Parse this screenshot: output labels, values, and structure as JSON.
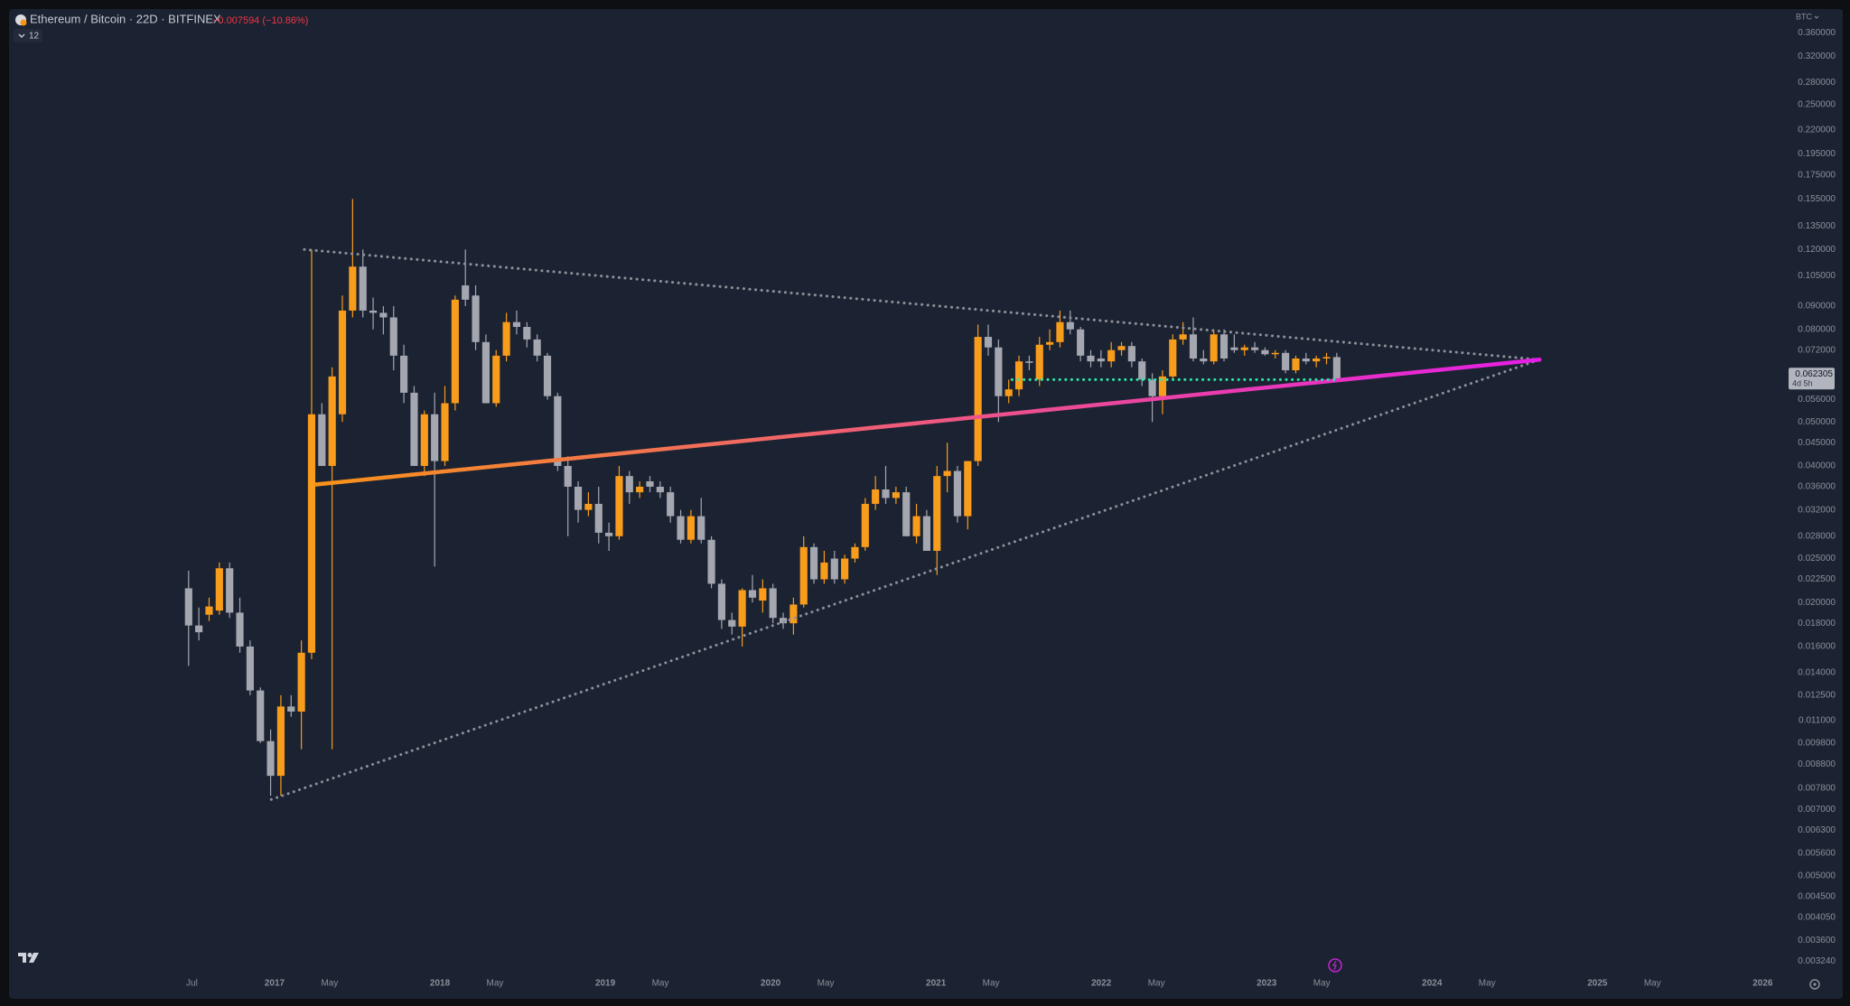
{
  "chart_data": {
    "type": "candlestick",
    "title": "Ethereum / Bitcoin · 22D · BITFINEX",
    "subtitle": "−0.007594 (−10.86%)",
    "indicator_count": "12",
    "currency": "BTC",
    "last_price": 0.062305,
    "countdown": "4d 5h",
    "log_scale": true,
    "grid": false,
    "up_color": "#f89c1c",
    "down_color": "#a4a7b0",
    "xlim": [
      2015.394,
      2026.129
    ],
    "ylim": [
      0.00303,
      0.401
    ],
    "xticks": [
      {
        "value": 2016.5,
        "label": "Jul"
      },
      2017,
      {
        "value": 2017.333,
        "label": "May"
      },
      2018,
      {
        "value": 2018.333,
        "label": "May"
      },
      2019,
      {
        "value": 2019.333,
        "label": "May"
      },
      2020,
      {
        "value": 2020.333,
        "label": "May"
      },
      2021,
      {
        "value": 2021.333,
        "label": "May"
      },
      2022,
      {
        "value": 2022.333,
        "label": "May"
      },
      2023,
      {
        "value": 2023.333,
        "label": "May"
      },
      2024,
      {
        "value": 2024.333,
        "label": "May"
      },
      2025,
      {
        "value": 2025.333,
        "label": "May"
      },
      2026
    ],
    "yticks": [
      {
        "value": 0.36,
        "label": "0.360000"
      },
      {
        "value": 0.32,
        "label": "0.320000"
      },
      {
        "value": 0.28,
        "label": "0.280000"
      },
      {
        "value": 0.25,
        "label": "0.250000"
      },
      {
        "value": 0.22,
        "label": "0.220000"
      },
      {
        "value": 0.195,
        "label": "0.195000"
      },
      {
        "value": 0.175,
        "label": "0.175000"
      },
      {
        "value": 0.155,
        "label": "0.155000"
      },
      {
        "value": 0.135,
        "label": "0.135000"
      },
      {
        "value": 0.12,
        "label": "0.120000"
      },
      {
        "value": 0.105,
        "label": "0.105000"
      },
      {
        "value": 0.09,
        "label": "0.090000"
      },
      {
        "value": 0.08,
        "label": "0.080000"
      },
      {
        "value": 0.072,
        "label": "0.072000"
      },
      {
        "value": 0.056,
        "label": "0.056000"
      },
      {
        "value": 0.05,
        "label": "0.050000"
      },
      {
        "value": 0.045,
        "label": "0.045000"
      },
      {
        "value": 0.04,
        "label": "0.040000"
      },
      {
        "value": 0.036,
        "label": "0.036000"
      },
      {
        "value": 0.032,
        "label": "0.032000"
      },
      {
        "value": 0.028,
        "label": "0.028000"
      },
      {
        "value": 0.025,
        "label": "0.025000"
      },
      {
        "value": 0.0225,
        "label": "0.022500"
      },
      {
        "value": 0.02,
        "label": "0.020000"
      },
      {
        "value": 0.018,
        "label": "0.018000"
      },
      {
        "value": 0.016,
        "label": "0.016000"
      },
      {
        "value": 0.014,
        "label": "0.014000"
      },
      {
        "value": 0.0125,
        "label": "0.012500"
      },
      {
        "value": 0.011,
        "label": "0.011000"
      },
      {
        "value": 0.0098,
        "label": "0.009800"
      },
      {
        "value": 0.0088,
        "label": "0.008800"
      },
      {
        "value": 0.0078,
        "label": "0.007800"
      },
      {
        "value": 0.007,
        "label": "0.007000"
      },
      {
        "value": 0.0063,
        "label": "0.006300"
      },
      {
        "value": 0.0056,
        "label": "0.005600"
      },
      {
        "value": 0.005,
        "label": "0.005000"
      },
      {
        "value": 0.0045,
        "label": "0.004500"
      },
      {
        "value": 0.00405,
        "label": "0.004050"
      },
      {
        "value": 0.0036,
        "label": "0.003600"
      },
      {
        "value": 0.00324,
        "label": "0.003240"
      }
    ],
    "candles": [
      {
        "x": 2016.48,
        "open": 0.0215,
        "high": 0.0235,
        "low": 0.0145,
        "close": 0.0178
      },
      {
        "x": 2016.542,
        "open": 0.0178,
        "high": 0.0195,
        "low": 0.0165,
        "close": 0.0172
      },
      {
        "x": 2016.604,
        "open": 0.0188,
        "high": 0.0205,
        "low": 0.0182,
        "close": 0.0196
      },
      {
        "x": 2016.666,
        "open": 0.0192,
        "high": 0.0245,
        "low": 0.0188,
        "close": 0.0238
      },
      {
        "x": 2016.728,
        "open": 0.0238,
        "high": 0.0245,
        "low": 0.0185,
        "close": 0.019
      },
      {
        "x": 2016.79,
        "open": 0.019,
        "high": 0.0205,
        "low": 0.0155,
        "close": 0.016
      },
      {
        "x": 2016.852,
        "open": 0.016,
        "high": 0.0165,
        "low": 0.0125,
        "close": 0.0128
      },
      {
        "x": 2016.914,
        "open": 0.0128,
        "high": 0.013,
        "low": 0.0098,
        "close": 0.0099
      },
      {
        "x": 2016.976,
        "open": 0.0099,
        "high": 0.0105,
        "low": 0.0075,
        "close": 0.0083
      },
      {
        "x": 2017.038,
        "open": 0.0083,
        "high": 0.0125,
        "low": 0.0075,
        "close": 0.0118
      },
      {
        "x": 2017.1,
        "open": 0.0118,
        "high": 0.0125,
        "low": 0.0112,
        "close": 0.0115
      },
      {
        "x": 2017.162,
        "open": 0.0115,
        "high": 0.0165,
        "low": 0.0095,
        "close": 0.0155
      },
      {
        "x": 2017.224,
        "open": 0.0155,
        "high": 0.12,
        "low": 0.015,
        "close": 0.052
      },
      {
        "x": 2017.286,
        "open": 0.052,
        "high": 0.055,
        "low": 0.04,
        "close": 0.04
      },
      {
        "x": 2017.348,
        "open": 0.04,
        "high": 0.066,
        "low": 0.0095,
        "close": 0.063
      },
      {
        "x": 2017.41,
        "open": 0.052,
        "high": 0.095,
        "low": 0.05,
        "close": 0.088
      },
      {
        "x": 2017.472,
        "open": 0.088,
        "high": 0.155,
        "low": 0.085,
        "close": 0.11
      },
      {
        "x": 2017.534,
        "open": 0.11,
        "high": 0.12,
        "low": 0.085,
        "close": 0.088
      },
      {
        "x": 2017.596,
        "open": 0.088,
        "high": 0.094,
        "low": 0.08,
        "close": 0.087
      },
      {
        "x": 2017.658,
        "open": 0.087,
        "high": 0.09,
        "low": 0.078,
        "close": 0.085
      },
      {
        "x": 2017.72,
        "open": 0.085,
        "high": 0.09,
        "low": 0.065,
        "close": 0.07
      },
      {
        "x": 2017.782,
        "open": 0.07,
        "high": 0.074,
        "low": 0.055,
        "close": 0.058
      },
      {
        "x": 2017.844,
        "open": 0.058,
        "high": 0.06,
        "low": 0.04,
        "close": 0.04
      },
      {
        "x": 2017.906,
        "open": 0.04,
        "high": 0.053,
        "low": 0.038,
        "close": 0.052
      },
      {
        "x": 2017.968,
        "open": 0.052,
        "high": 0.058,
        "low": 0.024,
        "close": 0.041
      },
      {
        "x": 2018.03,
        "open": 0.041,
        "high": 0.06,
        "low": 0.04,
        "close": 0.055
      },
      {
        "x": 2018.092,
        "open": 0.055,
        "high": 0.095,
        "low": 0.053,
        "close": 0.093
      },
      {
        "x": 2018.154,
        "open": 0.1,
        "high": 0.12,
        "low": 0.09,
        "close": 0.093
      },
      {
        "x": 2018.216,
        "open": 0.095,
        "high": 0.1,
        "low": 0.072,
        "close": 0.075
      },
      {
        "x": 2018.278,
        "open": 0.075,
        "high": 0.078,
        "low": 0.055,
        "close": 0.055
      },
      {
        "x": 2018.34,
        "open": 0.055,
        "high": 0.072,
        "low": 0.054,
        "close": 0.07
      },
      {
        "x": 2018.402,
        "open": 0.07,
        "high": 0.087,
        "low": 0.068,
        "close": 0.083
      },
      {
        "x": 2018.464,
        "open": 0.083,
        "high": 0.088,
        "low": 0.078,
        "close": 0.081
      },
      {
        "x": 2018.526,
        "open": 0.081,
        "high": 0.083,
        "low": 0.073,
        "close": 0.076
      },
      {
        "x": 2018.588,
        "open": 0.076,
        "high": 0.078,
        "low": 0.068,
        "close": 0.07
      },
      {
        "x": 2018.65,
        "open": 0.07,
        "high": 0.071,
        "low": 0.056,
        "close": 0.057
      },
      {
        "x": 2018.712,
        "open": 0.057,
        "high": 0.058,
        "low": 0.039,
        "close": 0.04
      },
      {
        "x": 2018.774,
        "open": 0.04,
        "high": 0.042,
        "low": 0.028,
        "close": 0.036
      },
      {
        "x": 2018.836,
        "open": 0.036,
        "high": 0.037,
        "low": 0.03,
        "close": 0.032
      },
      {
        "x": 2018.898,
        "open": 0.032,
        "high": 0.035,
        "low": 0.031,
        "close": 0.033
      },
      {
        "x": 2018.96,
        "open": 0.033,
        "high": 0.036,
        "low": 0.027,
        "close": 0.0285
      },
      {
        "x": 2019.022,
        "open": 0.0285,
        "high": 0.03,
        "low": 0.026,
        "close": 0.028
      },
      {
        "x": 2019.084,
        "open": 0.028,
        "high": 0.04,
        "low": 0.0275,
        "close": 0.038
      },
      {
        "x": 2019.146,
        "open": 0.038,
        "high": 0.039,
        "low": 0.033,
        "close": 0.035
      },
      {
        "x": 2019.208,
        "open": 0.035,
        "high": 0.037,
        "low": 0.034,
        "close": 0.036
      },
      {
        "x": 2019.27,
        "open": 0.037,
        "high": 0.038,
        "low": 0.035,
        "close": 0.036
      },
      {
        "x": 2019.332,
        "open": 0.036,
        "high": 0.037,
        "low": 0.034,
        "close": 0.035
      },
      {
        "x": 2019.394,
        "open": 0.035,
        "high": 0.036,
        "low": 0.03,
        "close": 0.031
      },
      {
        "x": 2019.456,
        "open": 0.031,
        "high": 0.032,
        "low": 0.027,
        "close": 0.0275
      },
      {
        "x": 2019.518,
        "open": 0.0275,
        "high": 0.032,
        "low": 0.027,
        "close": 0.031
      },
      {
        "x": 2019.58,
        "open": 0.031,
        "high": 0.034,
        "low": 0.027,
        "close": 0.0275
      },
      {
        "x": 2019.642,
        "open": 0.0275,
        "high": 0.028,
        "low": 0.0215,
        "close": 0.022
      },
      {
        "x": 2019.704,
        "open": 0.022,
        "high": 0.0225,
        "low": 0.0175,
        "close": 0.0183
      },
      {
        "x": 2019.766,
        "open": 0.0183,
        "high": 0.019,
        "low": 0.017,
        "close": 0.0177
      },
      {
        "x": 2019.828,
        "open": 0.0177,
        "high": 0.0215,
        "low": 0.016,
        "close": 0.0213
      },
      {
        "x": 2019.89,
        "open": 0.0213,
        "high": 0.023,
        "low": 0.02,
        "close": 0.0205
      },
      {
        "x": 2019.952,
        "open": 0.0202,
        "high": 0.0225,
        "low": 0.019,
        "close": 0.0215
      },
      {
        "x": 2020.014,
        "open": 0.0215,
        "high": 0.022,
        "low": 0.018,
        "close": 0.0185
      },
      {
        "x": 2020.076,
        "open": 0.0185,
        "high": 0.019,
        "low": 0.0175,
        "close": 0.018
      },
      {
        "x": 2020.138,
        "open": 0.018,
        "high": 0.0205,
        "low": 0.017,
        "close": 0.0198
      },
      {
        "x": 2020.2,
        "open": 0.0198,
        "high": 0.028,
        "low": 0.0195,
        "close": 0.0265
      },
      {
        "x": 2020.262,
        "open": 0.0265,
        "high": 0.027,
        "low": 0.022,
        "close": 0.0225
      },
      {
        "x": 2020.324,
        "open": 0.0225,
        "high": 0.026,
        "low": 0.022,
        "close": 0.0245
      },
      {
        "x": 2020.386,
        "open": 0.025,
        "high": 0.026,
        "low": 0.022,
        "close": 0.0225
      },
      {
        "x": 2020.448,
        "open": 0.0225,
        "high": 0.0255,
        "low": 0.022,
        "close": 0.025
      },
      {
        "x": 2020.51,
        "open": 0.025,
        "high": 0.027,
        "low": 0.0245,
        "close": 0.0265
      },
      {
        "x": 2020.572,
        "open": 0.0265,
        "high": 0.034,
        "low": 0.026,
        "close": 0.033
      },
      {
        "x": 2020.634,
        "open": 0.033,
        "high": 0.038,
        "low": 0.032,
        "close": 0.0355
      },
      {
        "x": 2020.696,
        "open": 0.0355,
        "high": 0.04,
        "low": 0.033,
        "close": 0.034
      },
      {
        "x": 2020.758,
        "open": 0.034,
        "high": 0.036,
        "low": 0.033,
        "close": 0.035
      },
      {
        "x": 2020.82,
        "open": 0.035,
        "high": 0.036,
        "low": 0.028,
        "close": 0.028
      },
      {
        "x": 2020.882,
        "open": 0.028,
        "high": 0.033,
        "low": 0.027,
        "close": 0.031
      },
      {
        "x": 2020.944,
        "open": 0.031,
        "high": 0.032,
        "low": 0.026,
        "close": 0.026
      },
      {
        "x": 2021.006,
        "open": 0.026,
        "high": 0.04,
        "low": 0.023,
        "close": 0.038
      },
      {
        "x": 2021.068,
        "open": 0.038,
        "high": 0.045,
        "low": 0.035,
        "close": 0.039
      },
      {
        "x": 2021.13,
        "open": 0.039,
        "high": 0.04,
        "low": 0.03,
        "close": 0.031
      },
      {
        "x": 2021.192,
        "open": 0.031,
        "high": 0.041,
        "low": 0.029,
        "close": 0.041
      },
      {
        "x": 2021.254,
        "open": 0.041,
        "high": 0.082,
        "low": 0.04,
        "close": 0.077
      },
      {
        "x": 2021.316,
        "open": 0.077,
        "high": 0.082,
        "low": 0.07,
        "close": 0.073
      },
      {
        "x": 2021.378,
        "open": 0.073,
        "high": 0.076,
        "low": 0.05,
        "close": 0.057
      },
      {
        "x": 2021.44,
        "open": 0.057,
        "high": 0.062,
        "low": 0.055,
        "close": 0.059
      },
      {
        "x": 2021.502,
        "open": 0.059,
        "high": 0.07,
        "low": 0.057,
        "close": 0.068
      },
      {
        "x": 2021.564,
        "open": 0.068,
        "high": 0.07,
        "low": 0.065,
        "close": 0.0675
      },
      {
        "x": 2021.626,
        "open": 0.062,
        "high": 0.077,
        "low": 0.06,
        "close": 0.074
      },
      {
        "x": 2021.688,
        "open": 0.074,
        "high": 0.08,
        "low": 0.072,
        "close": 0.075
      },
      {
        "x": 2021.75,
        "open": 0.075,
        "high": 0.088,
        "low": 0.073,
        "close": 0.083
      },
      {
        "x": 2021.812,
        "open": 0.083,
        "high": 0.088,
        "low": 0.078,
        "close": 0.08
      },
      {
        "x": 2021.874,
        "open": 0.08,
        "high": 0.081,
        "low": 0.068,
        "close": 0.07
      },
      {
        "x": 2021.936,
        "open": 0.07,
        "high": 0.072,
        "low": 0.066,
        "close": 0.068
      },
      {
        "x": 2021.998,
        "open": 0.069,
        "high": 0.072,
        "low": 0.066,
        "close": 0.068
      },
      {
        "x": 2022.06,
        "open": 0.068,
        "high": 0.075,
        "low": 0.066,
        "close": 0.072
      },
      {
        "x": 2022.122,
        "open": 0.072,
        "high": 0.075,
        "low": 0.07,
        "close": 0.0735
      },
      {
        "x": 2022.184,
        "open": 0.0735,
        "high": 0.075,
        "low": 0.066,
        "close": 0.068
      },
      {
        "x": 2022.246,
        "open": 0.068,
        "high": 0.069,
        "low": 0.06,
        "close": 0.062
      },
      {
        "x": 2022.308,
        "open": 0.062,
        "high": 0.064,
        "low": 0.05,
        "close": 0.057
      },
      {
        "x": 2022.37,
        "open": 0.057,
        "high": 0.065,
        "low": 0.052,
        "close": 0.063
      },
      {
        "x": 2022.432,
        "open": 0.063,
        "high": 0.078,
        "low": 0.062,
        "close": 0.076
      },
      {
        "x": 2022.494,
        "open": 0.076,
        "high": 0.083,
        "low": 0.074,
        "close": 0.078
      },
      {
        "x": 2022.556,
        "open": 0.078,
        "high": 0.085,
        "low": 0.068,
        "close": 0.069
      },
      {
        "x": 2022.618,
        "open": 0.069,
        "high": 0.072,
        "low": 0.067,
        "close": 0.068
      },
      {
        "x": 2022.68,
        "open": 0.068,
        "high": 0.08,
        "low": 0.067,
        "close": 0.078
      },
      {
        "x": 2022.742,
        "open": 0.078,
        "high": 0.08,
        "low": 0.068,
        "close": 0.069
      },
      {
        "x": 2022.804,
        "open": 0.073,
        "high": 0.078,
        "low": 0.071,
        "close": 0.072
      },
      {
        "x": 2022.866,
        "open": 0.072,
        "high": 0.074,
        "low": 0.07,
        "close": 0.073
      },
      {
        "x": 2022.928,
        "open": 0.073,
        "high": 0.075,
        "low": 0.071,
        "close": 0.072
      },
      {
        "x": 2022.99,
        "open": 0.072,
        "high": 0.073,
        "low": 0.07,
        "close": 0.0705
      },
      {
        "x": 2023.052,
        "open": 0.0705,
        "high": 0.072,
        "low": 0.069,
        "close": 0.071
      },
      {
        "x": 2023.114,
        "open": 0.071,
        "high": 0.072,
        "low": 0.064,
        "close": 0.065
      },
      {
        "x": 2023.176,
        "open": 0.065,
        "high": 0.07,
        "low": 0.064,
        "close": 0.069
      },
      {
        "x": 2023.238,
        "open": 0.069,
        "high": 0.071,
        "low": 0.067,
        "close": 0.068
      },
      {
        "x": 2023.3,
        "open": 0.068,
        "high": 0.07,
        "low": 0.066,
        "close": 0.069
      },
      {
        "x": 2023.362,
        "open": 0.069,
        "high": 0.071,
        "low": 0.067,
        "close": 0.0695
      },
      {
        "x": 2023.424,
        "open": 0.0695,
        "high": 0.071,
        "low": 0.062,
        "close": 0.062305
      }
    ],
    "drawings": [
      {
        "style": "dotted",
        "colors": [
          "#8e9099",
          "#8e9099"
        ],
        "x": [
          2017.18,
          2024.65
        ],
        "y": [
          0.12,
          0.0686
        ]
      },
      {
        "style": "dotted",
        "colors": [
          "#8e9099",
          "#8e9099"
        ],
        "x": [
          2016.98,
          2024.65
        ],
        "y": [
          0.00736,
          0.0686
        ]
      },
      {
        "style": "solid",
        "colors": [
          "#f7931a",
          "#e51ee6"
        ],
        "x": [
          2017.25,
          2024.65
        ],
        "y": [
          0.0364,
          0.0686
        ]
      },
      {
        "style": "dotted",
        "colors": [
          "#2ee6a6",
          "#2ee6a6"
        ],
        "x": [
          2021.46,
          2023.42
        ],
        "y": [
          0.062,
          0.062
        ]
      }
    ]
  }
}
